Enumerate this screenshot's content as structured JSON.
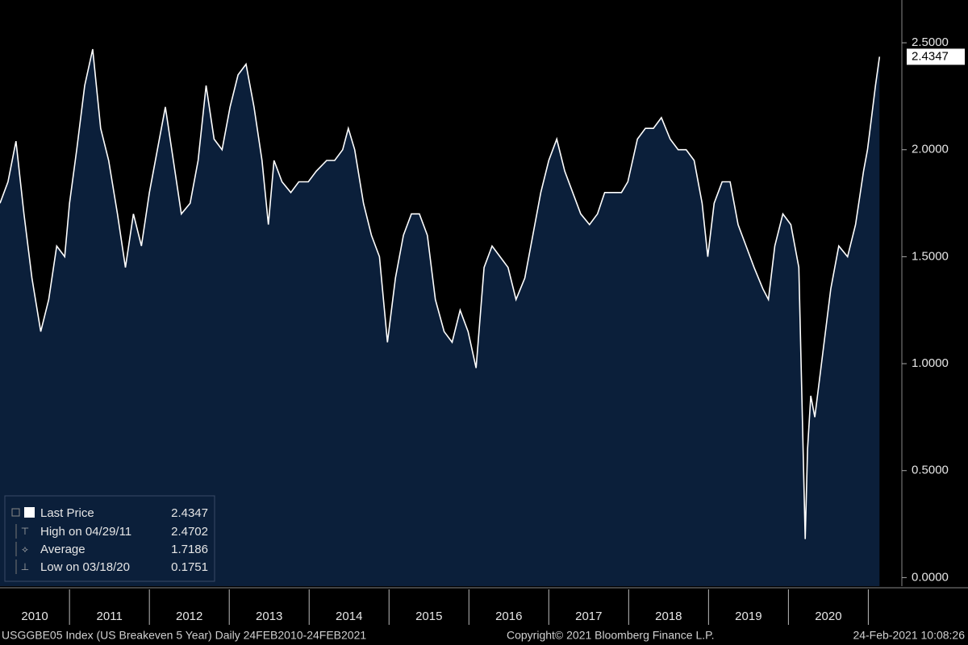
{
  "chart_data": {
    "type": "area",
    "series": [
      {
        "name": "Last Price",
        "color": "#ffffff",
        "fill": "#0b1f3a",
        "x": [
          2010.13,
          2010.23,
          2010.33,
          2010.43,
          2010.53,
          2010.64,
          2010.74,
          2010.84,
          2010.94,
          2011.0,
          2011.09,
          2011.19,
          2011.29,
          2011.39,
          2011.49,
          2011.6,
          2011.7,
          2011.8,
          2011.9,
          2012.0,
          2012.1,
          2012.2,
          2012.3,
          2012.4,
          2012.51,
          2012.61,
          2012.71,
          2012.81,
          2012.91,
          2013.01,
          2013.11,
          2013.21,
          2013.31,
          2013.41,
          2013.49,
          2013.56,
          2013.66,
          2013.77,
          2013.87,
          2013.99,
          2014.09,
          2014.22,
          2014.32,
          2014.42,
          2014.49,
          2014.57,
          2014.68,
          2014.78,
          2014.88,
          2014.98,
          2015.08,
          2015.18,
          2015.28,
          2015.38,
          2015.48,
          2015.58,
          2015.69,
          2015.79,
          2015.89,
          2015.99,
          2016.09,
          2016.19,
          2016.29,
          2016.39,
          2016.49,
          2016.59,
          2016.7,
          2016.8,
          2016.9,
          2017.0,
          2017.1,
          2017.2,
          2017.3,
          2017.4,
          2017.51,
          2017.61,
          2017.7,
          2017.81,
          2017.91,
          2017.99,
          2018.11,
          2018.21,
          2018.31,
          2018.41,
          2018.52,
          2018.62,
          2018.72,
          2018.82,
          2018.92,
          2018.99,
          2019.07,
          2019.17,
          2019.27,
          2019.37,
          2019.47,
          2019.57,
          2019.68,
          2019.75,
          2019.83,
          2019.93,
          2020.03,
          2020.13,
          2020.21,
          2020.24,
          2020.28,
          2020.33,
          2020.43,
          2020.53,
          2020.63,
          2020.74,
          2020.84,
          2020.94,
          2020.99,
          2021.04,
          2021.09,
          2021.14
        ],
        "values": [
          1.75,
          1.85,
          2.04,
          1.7,
          1.4,
          1.15,
          1.3,
          1.55,
          1.5,
          1.75,
          2.0,
          2.3,
          2.47,
          2.1,
          1.95,
          1.7,
          1.45,
          1.7,
          1.55,
          1.8,
          2.0,
          2.2,
          1.95,
          1.7,
          1.75,
          1.95,
          2.3,
          2.05,
          2.0,
          2.2,
          2.35,
          2.4,
          2.2,
          1.95,
          1.65,
          1.95,
          1.85,
          1.8,
          1.85,
          1.85,
          1.9,
          1.95,
          1.95,
          2.0,
          2.1,
          2.0,
          1.75,
          1.6,
          1.5,
          1.1,
          1.4,
          1.6,
          1.7,
          1.7,
          1.6,
          1.3,
          1.15,
          1.1,
          1.25,
          1.15,
          0.98,
          1.45,
          1.55,
          1.5,
          1.45,
          1.3,
          1.4,
          1.6,
          1.8,
          1.95,
          2.05,
          1.9,
          1.8,
          1.7,
          1.65,
          1.7,
          1.8,
          1.8,
          1.8,
          1.85,
          2.05,
          2.1,
          2.1,
          2.15,
          2.05,
          2.0,
          2.0,
          1.95,
          1.75,
          1.5,
          1.75,
          1.85,
          1.85,
          1.65,
          1.55,
          1.45,
          1.35,
          1.3,
          1.55,
          1.7,
          1.65,
          1.45,
          0.18,
          0.6,
          0.85,
          0.75,
          1.05,
          1.35,
          1.55,
          1.5,
          1.65,
          1.9,
          2.0,
          2.15,
          2.3,
          2.4347
        ]
      }
    ],
    "last_value": 2.4347,
    "stats": [
      {
        "label": "High on 04/29/11",
        "value": 2.4702
      },
      {
        "label": "Average",
        "value": 1.7186
      },
      {
        "label": "Low on 03/18/20",
        "value": 0.1751
      }
    ],
    "xlim": [
      2010.13,
      2021.42
    ],
    "xticks": [
      {
        "value": 2010,
        "label": "2010"
      },
      {
        "value": 2011,
        "label": "2011"
      },
      {
        "value": 2012,
        "label": "2012"
      },
      {
        "value": 2013,
        "label": "2013"
      },
      {
        "value": 2014,
        "label": "2014"
      },
      {
        "value": 2015,
        "label": "2015"
      },
      {
        "value": 2016,
        "label": "2016"
      },
      {
        "value": 2017,
        "label": "2017"
      },
      {
        "value": 2018,
        "label": "2018"
      },
      {
        "value": 2019,
        "label": "2019"
      },
      {
        "value": 2020,
        "label": "2020"
      }
    ],
    "ylim": [
      -0.04,
      2.7
    ],
    "yticks": [
      {
        "value": 0,
        "label": "0.0000"
      },
      {
        "value": 0.5,
        "label": "0.5000"
      },
      {
        "value": 1,
        "label": "1.0000"
      },
      {
        "value": 1.5,
        "label": "1.5000"
      },
      {
        "value": 2,
        "label": "2.0000"
      },
      {
        "value": 2.5,
        "label": "2.5000"
      }
    ],
    "footer": [
      "USGGBE05 Index (US Breakeven 5 Year)  Daily 24FEB2010-24FEB2021",
      "Copyright© 2021 Bloomberg Finance L.P.",
      "24-Feb-2021 10:08:26"
    ]
  }
}
